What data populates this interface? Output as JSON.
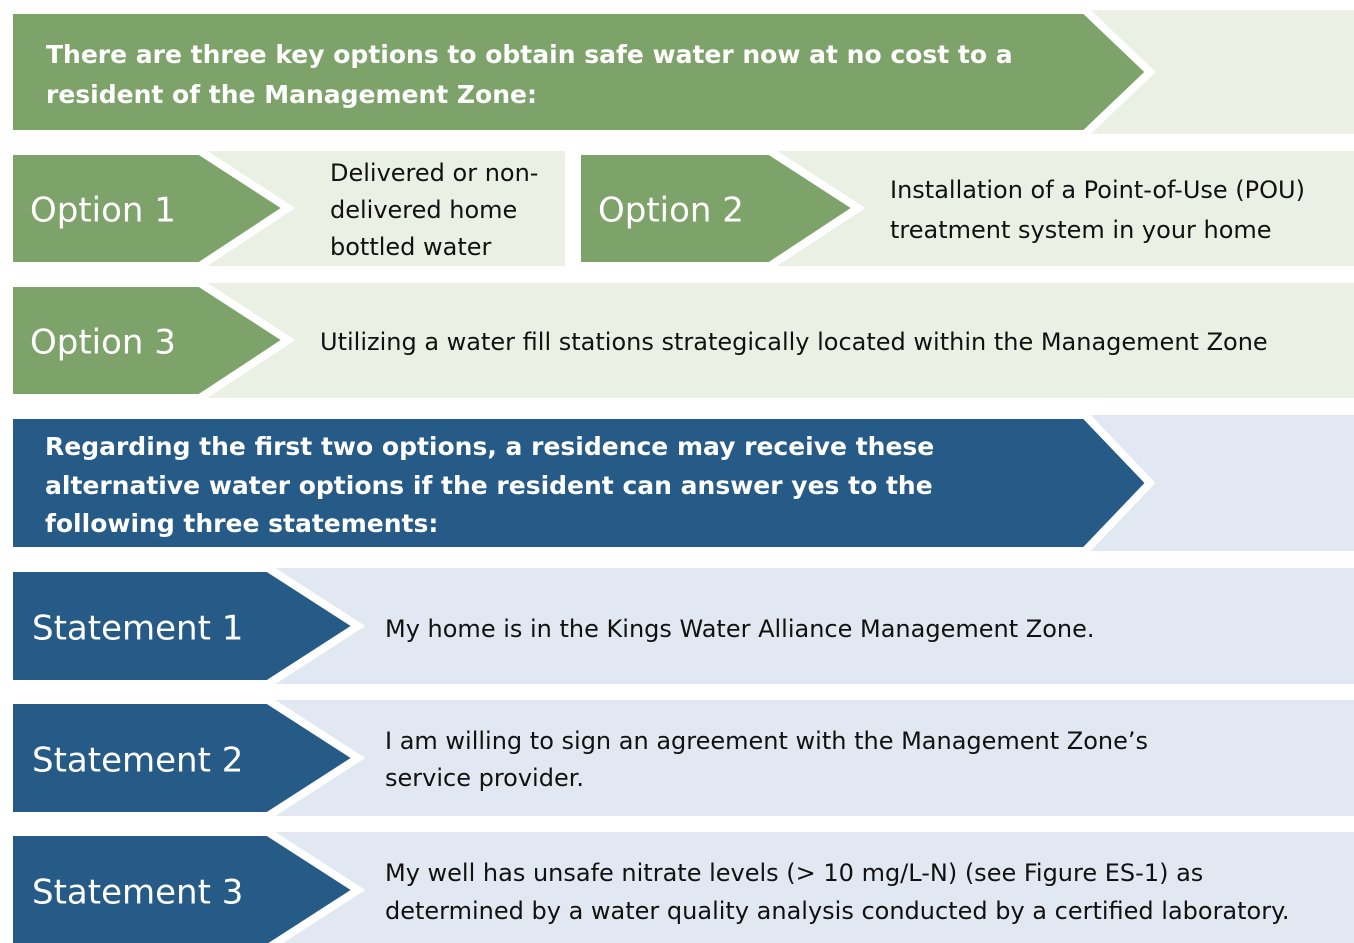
{
  "intro": {
    "lines": [
      "There are three key options to obtain safe water now at no cost to a",
      "resident of the Management Zone:"
    ]
  },
  "options": [
    {
      "label": "Option 1",
      "description": [
        "Delivered or non-",
        "delivered home",
        "bottled water"
      ]
    },
    {
      "label": "Option 2",
      "description": [
        "Installation of a Point-of-Use (POU)",
        "treatment system in your home"
      ]
    },
    {
      "label": "Option 3",
      "description": [
        "Utilizing a water fill stations strategically located within the Management Zone"
      ]
    }
  ],
  "criteria": {
    "lines": [
      "Regarding the first two options, a residence may receive these",
      "alternative water options if the resident can answer yes to the",
      "following three statements:"
    ]
  },
  "statements": [
    {
      "label": "Statement 1",
      "description": [
        "My home is in the Kings Water Alliance Management Zone."
      ]
    },
    {
      "label": "Statement 2",
      "description": [
        "I am willing to sign an agreement with the Management Zone’s",
        "service provider."
      ]
    },
    {
      "label": "Statement 3",
      "description": [
        "My well has unsafe nitrate levels (> 10 mg/L-N) (see Figure ES-1) as",
        "determined by a water quality analysis conducted by a certified laboratory."
      ]
    }
  ]
}
